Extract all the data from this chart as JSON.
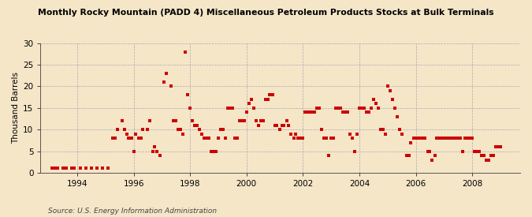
{
  "title": "Monthly Rocky Mountain (PADD 4) Miscellaneous Petroleum Products Stocks at Bulk Terminals",
  "ylabel": "Thousand Barrels",
  "source": "Source: U.S. Energy Information Administration",
  "background_color": "#f5e6c8",
  "marker_color": "#cc0000",
  "ylim": [
    0,
    30
  ],
  "yticks": [
    0,
    5,
    10,
    15,
    20,
    25,
    30
  ],
  "xlim_start": 1992.7,
  "xlim_end": 2009.7,
  "xticks": [
    1994,
    1996,
    1998,
    2000,
    2002,
    2004,
    2006,
    2008
  ],
  "data": [
    [
      1993.1,
      1
    ],
    [
      1993.2,
      1
    ],
    [
      1993.3,
      1
    ],
    [
      1993.5,
      1
    ],
    [
      1993.6,
      1
    ],
    [
      1993.8,
      1
    ],
    [
      1993.9,
      1
    ],
    [
      1994.1,
      1
    ],
    [
      1994.3,
      1
    ],
    [
      1994.5,
      1
    ],
    [
      1994.7,
      1
    ],
    [
      1994.9,
      1
    ],
    [
      1995.1,
      1
    ],
    [
      1995.25,
      8
    ],
    [
      1995.33,
      8
    ],
    [
      1995.42,
      10
    ],
    [
      1995.58,
      12
    ],
    [
      1995.67,
      10
    ],
    [
      1995.75,
      9
    ],
    [
      1995.83,
      8
    ],
    [
      1995.92,
      8
    ],
    [
      1996.0,
      5
    ],
    [
      1996.08,
      9
    ],
    [
      1996.17,
      8
    ],
    [
      1996.25,
      8
    ],
    [
      1996.33,
      10
    ],
    [
      1996.5,
      10
    ],
    [
      1996.58,
      12
    ],
    [
      1996.67,
      5
    ],
    [
      1996.75,
      6
    ],
    [
      1996.83,
      5
    ],
    [
      1996.92,
      4
    ],
    [
      1997.08,
      21
    ],
    [
      1997.17,
      23
    ],
    [
      1997.33,
      20
    ],
    [
      1997.42,
      12
    ],
    [
      1997.5,
      12
    ],
    [
      1997.58,
      10
    ],
    [
      1997.67,
      10
    ],
    [
      1997.75,
      9
    ],
    [
      1997.83,
      28
    ],
    [
      1997.92,
      18
    ],
    [
      1998.0,
      15
    ],
    [
      1998.08,
      12
    ],
    [
      1998.17,
      11
    ],
    [
      1998.25,
      11
    ],
    [
      1998.33,
      10
    ],
    [
      1998.42,
      9
    ],
    [
      1998.5,
      8
    ],
    [
      1998.58,
      8
    ],
    [
      1998.67,
      8
    ],
    [
      1998.75,
      5
    ],
    [
      1998.83,
      5
    ],
    [
      1998.92,
      5
    ],
    [
      1999.0,
      8
    ],
    [
      1999.08,
      10
    ],
    [
      1999.17,
      10
    ],
    [
      1999.25,
      8
    ],
    [
      1999.33,
      15
    ],
    [
      1999.42,
      15
    ],
    [
      1999.5,
      15
    ],
    [
      1999.58,
      8
    ],
    [
      1999.67,
      8
    ],
    [
      1999.75,
      12
    ],
    [
      1999.83,
      12
    ],
    [
      1999.92,
      12
    ],
    [
      2000.0,
      14
    ],
    [
      2000.08,
      16
    ],
    [
      2000.17,
      17
    ],
    [
      2000.25,
      15
    ],
    [
      2000.33,
      12
    ],
    [
      2000.42,
      11
    ],
    [
      2000.5,
      12
    ],
    [
      2000.58,
      12
    ],
    [
      2000.67,
      17
    ],
    [
      2000.75,
      17
    ],
    [
      2000.83,
      18
    ],
    [
      2000.92,
      18
    ],
    [
      2001.0,
      11
    ],
    [
      2001.08,
      11
    ],
    [
      2001.17,
      10
    ],
    [
      2001.25,
      11
    ],
    [
      2001.33,
      11
    ],
    [
      2001.42,
      12
    ],
    [
      2001.5,
      11
    ],
    [
      2001.58,
      9
    ],
    [
      2001.67,
      8
    ],
    [
      2001.75,
      9
    ],
    [
      2001.83,
      8
    ],
    [
      2001.92,
      8
    ],
    [
      2002.0,
      8
    ],
    [
      2002.08,
      14
    ],
    [
      2002.17,
      14
    ],
    [
      2002.25,
      14
    ],
    [
      2002.33,
      14
    ],
    [
      2002.42,
      14
    ],
    [
      2002.5,
      15
    ],
    [
      2002.58,
      15
    ],
    [
      2002.67,
      10
    ],
    [
      2002.75,
      8
    ],
    [
      2002.83,
      8
    ],
    [
      2002.92,
      4
    ],
    [
      2003.0,
      8
    ],
    [
      2003.08,
      8
    ],
    [
      2003.17,
      15
    ],
    [
      2003.25,
      15
    ],
    [
      2003.33,
      15
    ],
    [
      2003.42,
      14
    ],
    [
      2003.5,
      14
    ],
    [
      2003.58,
      14
    ],
    [
      2003.67,
      9
    ],
    [
      2003.75,
      8
    ],
    [
      2003.83,
      5
    ],
    [
      2003.92,
      9
    ],
    [
      2004.0,
      15
    ],
    [
      2004.08,
      15
    ],
    [
      2004.17,
      15
    ],
    [
      2004.25,
      14
    ],
    [
      2004.33,
      14
    ],
    [
      2004.42,
      15
    ],
    [
      2004.5,
      17
    ],
    [
      2004.58,
      16
    ],
    [
      2004.67,
      15
    ],
    [
      2004.75,
      10
    ],
    [
      2004.83,
      10
    ],
    [
      2004.92,
      9
    ],
    [
      2005.0,
      20
    ],
    [
      2005.08,
      19
    ],
    [
      2005.17,
      17
    ],
    [
      2005.25,
      15
    ],
    [
      2005.33,
      13
    ],
    [
      2005.42,
      10
    ],
    [
      2005.5,
      9
    ],
    [
      2005.67,
      4
    ],
    [
      2005.75,
      4
    ],
    [
      2005.83,
      7
    ],
    [
      2005.92,
      8
    ],
    [
      2006.0,
      8
    ],
    [
      2006.08,
      8
    ],
    [
      2006.17,
      8
    ],
    [
      2006.25,
      8
    ],
    [
      2006.33,
      8
    ],
    [
      2006.42,
      5
    ],
    [
      2006.5,
      5
    ],
    [
      2006.58,
      3
    ],
    [
      2006.67,
      4
    ],
    [
      2006.75,
      8
    ],
    [
      2006.83,
      8
    ],
    [
      2006.92,
      8
    ],
    [
      2007.0,
      8
    ],
    [
      2007.08,
      8
    ],
    [
      2007.17,
      8
    ],
    [
      2007.25,
      8
    ],
    [
      2007.33,
      8
    ],
    [
      2007.42,
      8
    ],
    [
      2007.5,
      8
    ],
    [
      2007.58,
      8
    ],
    [
      2007.67,
      5
    ],
    [
      2007.75,
      8
    ],
    [
      2007.83,
      8
    ],
    [
      2007.92,
      8
    ],
    [
      2008.0,
      8
    ],
    [
      2008.08,
      5
    ],
    [
      2008.17,
      5
    ],
    [
      2008.25,
      5
    ],
    [
      2008.33,
      4
    ],
    [
      2008.42,
      4
    ],
    [
      2008.5,
      3
    ],
    [
      2008.58,
      3
    ],
    [
      2008.67,
      4
    ],
    [
      2008.75,
      4
    ],
    [
      2008.83,
      6
    ],
    [
      2008.92,
      6
    ],
    [
      2009.0,
      6
    ]
  ]
}
